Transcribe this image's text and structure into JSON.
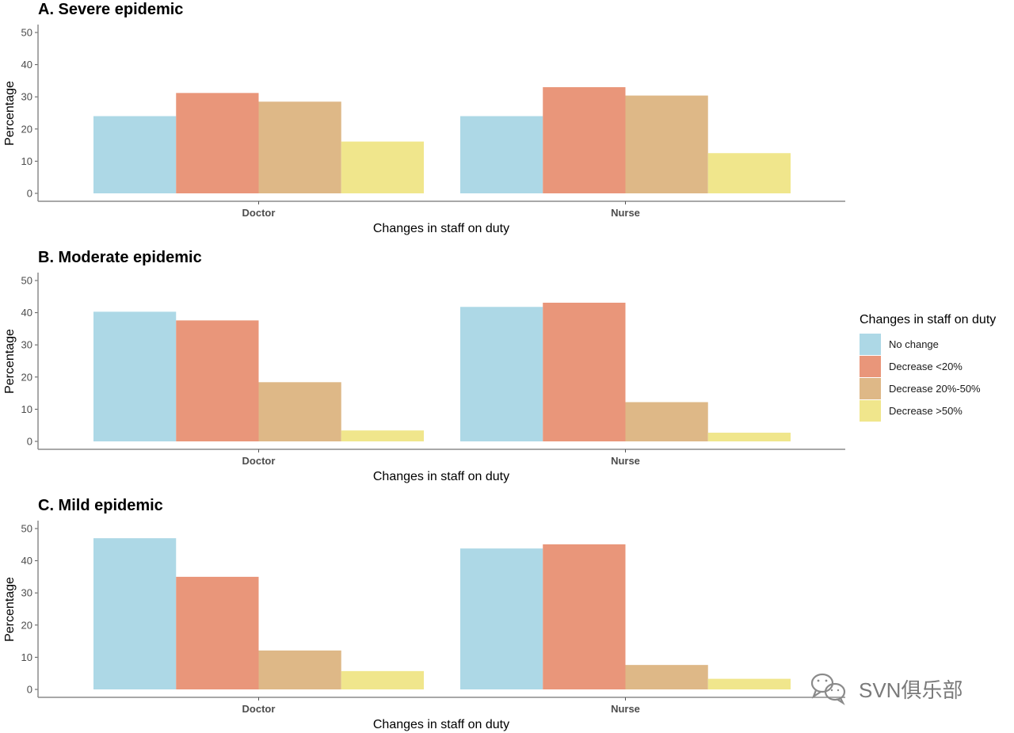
{
  "chart_data": [
    {
      "type": "bar",
      "title": "A. Severe epidemic",
      "xlabel": "Changes in staff on duty",
      "ylabel": "Percentage",
      "ylim": [
        0,
        50
      ],
      "yticks": [
        0,
        10,
        20,
        30,
        40,
        50
      ],
      "categories": [
        "Doctor",
        "Nurse"
      ],
      "series": [
        {
          "name": "No change",
          "values": [
            24,
            24
          ]
        },
        {
          "name": "Decrease <20%",
          "values": [
            31.2,
            33
          ]
        },
        {
          "name": "Decrease 20%-50%",
          "values": [
            28.5,
            30.4
          ]
        },
        {
          "name": "Decrease >50%",
          "values": [
            16.1,
            12.5
          ]
        }
      ]
    },
    {
      "type": "bar",
      "title": "B. Moderate epidemic",
      "xlabel": "Changes in staff on duty",
      "ylabel": "Percentage",
      "ylim": [
        0,
        50
      ],
      "yticks": [
        0,
        10,
        20,
        30,
        40,
        50
      ],
      "categories": [
        "Doctor",
        "Nurse"
      ],
      "series": [
        {
          "name": "No change",
          "values": [
            40.3,
            41.8
          ]
        },
        {
          "name": "Decrease <20%",
          "values": [
            37.6,
            43.1
          ]
        },
        {
          "name": "Decrease 20%-50%",
          "values": [
            18.4,
            12.2
          ]
        },
        {
          "name": "Decrease >50%",
          "values": [
            3.4,
            2.7
          ]
        }
      ]
    },
    {
      "type": "bar",
      "title": "C. Mild epidemic",
      "xlabel": "Changes in staff on duty",
      "ylabel": "Percentage",
      "ylim": [
        0,
        50
      ],
      "yticks": [
        0,
        10,
        20,
        30,
        40,
        50
      ],
      "categories": [
        "Doctor",
        "Nurse"
      ],
      "series": [
        {
          "name": "No change",
          "values": [
            47,
            43.8
          ]
        },
        {
          "name": "Decrease <20%",
          "values": [
            35,
            45.1
          ]
        },
        {
          "name": "Decrease 20%-50%",
          "values": [
            12.1,
            7.6
          ]
        },
        {
          "name": "Decrease >50%",
          "values": [
            5.7,
            3.3
          ]
        }
      ]
    }
  ],
  "legend": {
    "title": "Changes in staff on duty",
    "placement": "right",
    "items": [
      {
        "label": "No change",
        "color": "#add8e6"
      },
      {
        "label": "Decrease <20%",
        "color": "#e9967a"
      },
      {
        "label": "Decrease 20%-50%",
        "color": "#deb887"
      },
      {
        "label": "Decrease >50%",
        "color": "#f0e68c"
      }
    ]
  },
  "watermark": {
    "text": "SVN俱乐部",
    "icon": "wechat-icon"
  }
}
